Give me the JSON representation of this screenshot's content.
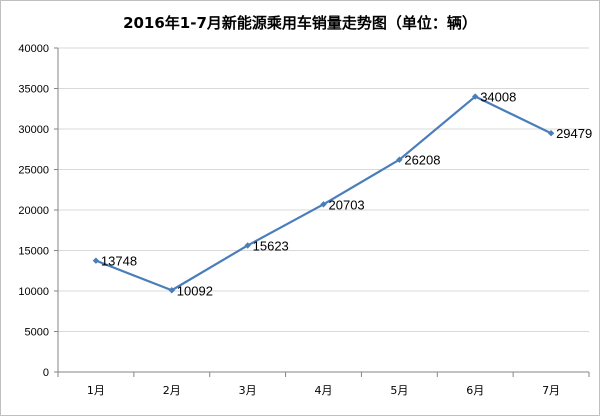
{
  "chart_data": {
    "type": "line",
    "title": "2016年1-7月新能源乘用车销量走势图（单位：辆）",
    "categories": [
      "1月",
      "2月",
      "3月",
      "4月",
      "5月",
      "6月",
      "7月"
    ],
    "series": [
      {
        "name": "销量",
        "values": [
          13748,
          10092,
          15623,
          20703,
          26208,
          34008,
          29479
        ]
      }
    ],
    "data_labels": [
      "13748",
      "10092",
      "15623",
      "20703",
      "26208",
      "34008",
      "29479"
    ],
    "y_ticks": [
      0,
      5000,
      10000,
      15000,
      20000,
      25000,
      30000,
      35000,
      40000
    ],
    "y_tick_labels": [
      "0",
      "5000",
      "10000",
      "15000",
      "20000",
      "25000",
      "30000",
      "35000",
      "40000"
    ],
    "ylim": [
      0,
      40000
    ],
    "xlabel": "",
    "ylabel": "",
    "grid": true,
    "legend": "none",
    "line_color": "#4a7ebb",
    "grid_color": "#d9d9d9",
    "axis_color": "#868686"
  }
}
